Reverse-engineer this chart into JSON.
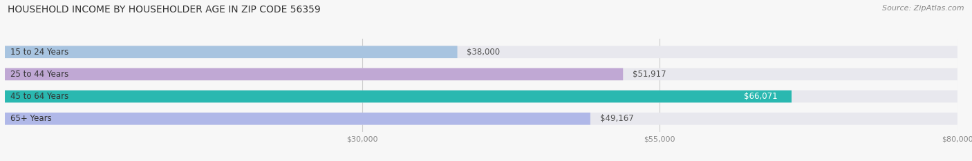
{
  "title": "HOUSEHOLD INCOME BY HOUSEHOLDER AGE IN ZIP CODE 56359",
  "source": "Source: ZipAtlas.com",
  "categories": [
    "15 to 24 Years",
    "25 to 44 Years",
    "45 to 64 Years",
    "65+ Years"
  ],
  "values": [
    38000,
    51917,
    66071,
    49167
  ],
  "bar_colors": [
    "#a8c4e0",
    "#c0a8d4",
    "#2ab8b0",
    "#b0b8e8"
  ],
  "bg_bar_color": "#e8e8ee",
  "label_colors": [
    "#555555",
    "#555555",
    "#ffffff",
    "#555555"
  ],
  "xmin": 0,
  "xmax": 80000,
  "xticks": [
    30000,
    55000,
    80000
  ],
  "xtick_labels": [
    "$30,000",
    "$55,000",
    "$80,000"
  ],
  "figsize": [
    14.06,
    2.33
  ],
  "dpi": 100,
  "title_fontsize": 10,
  "bar_height": 0.55,
  "label_fontsize": 8.5,
  "category_fontsize": 8.5,
  "tick_fontsize": 8,
  "source_fontsize": 8
}
